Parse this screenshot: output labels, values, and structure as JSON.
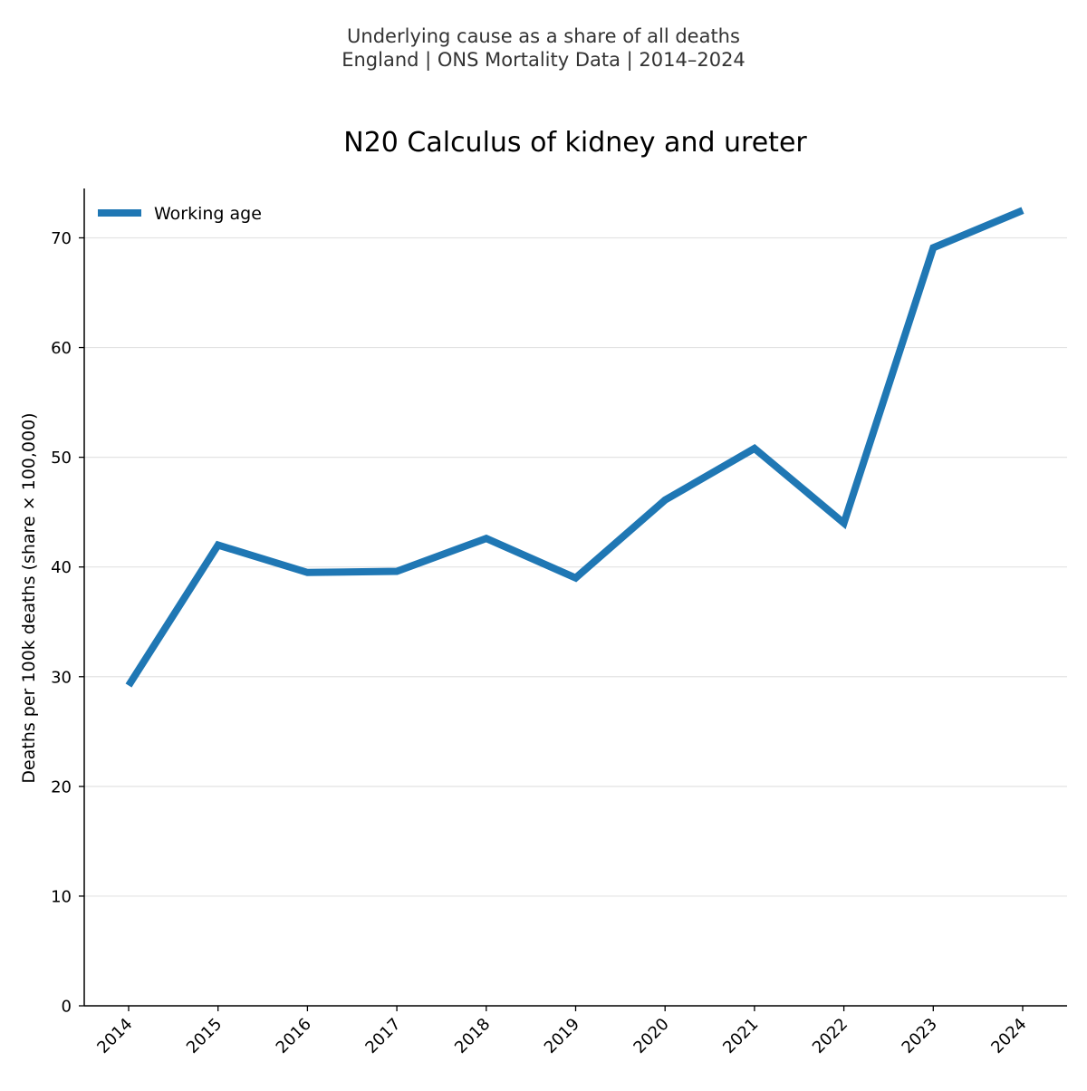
{
  "chart_data": {
    "type": "line",
    "subtitle_lines": [
      "Underlying cause as a share of all deaths",
      "England | ONS Mortality Data | 2014–2024"
    ],
    "title": "N20 Calculus of kidney and ureter",
    "xlabel": "",
    "ylabel": "Deaths per 100k deaths (share × 100,000)",
    "categories": [
      "2014",
      "2015",
      "2016",
      "2017",
      "2018",
      "2019",
      "2020",
      "2021",
      "2022",
      "2023",
      "2024"
    ],
    "series": [
      {
        "name": "Working age",
        "color": "#1f77b4",
        "values": [
          29.2,
          42.0,
          39.5,
          39.6,
          42.6,
          39.0,
          46.1,
          50.8,
          44.0,
          69.1,
          72.5
        ]
      }
    ],
    "ylim": [
      0,
      74.5
    ],
    "yticks": [
      0,
      10,
      20,
      30,
      40,
      50,
      60,
      70
    ],
    "grid": true,
    "legend_position": "top-left"
  }
}
